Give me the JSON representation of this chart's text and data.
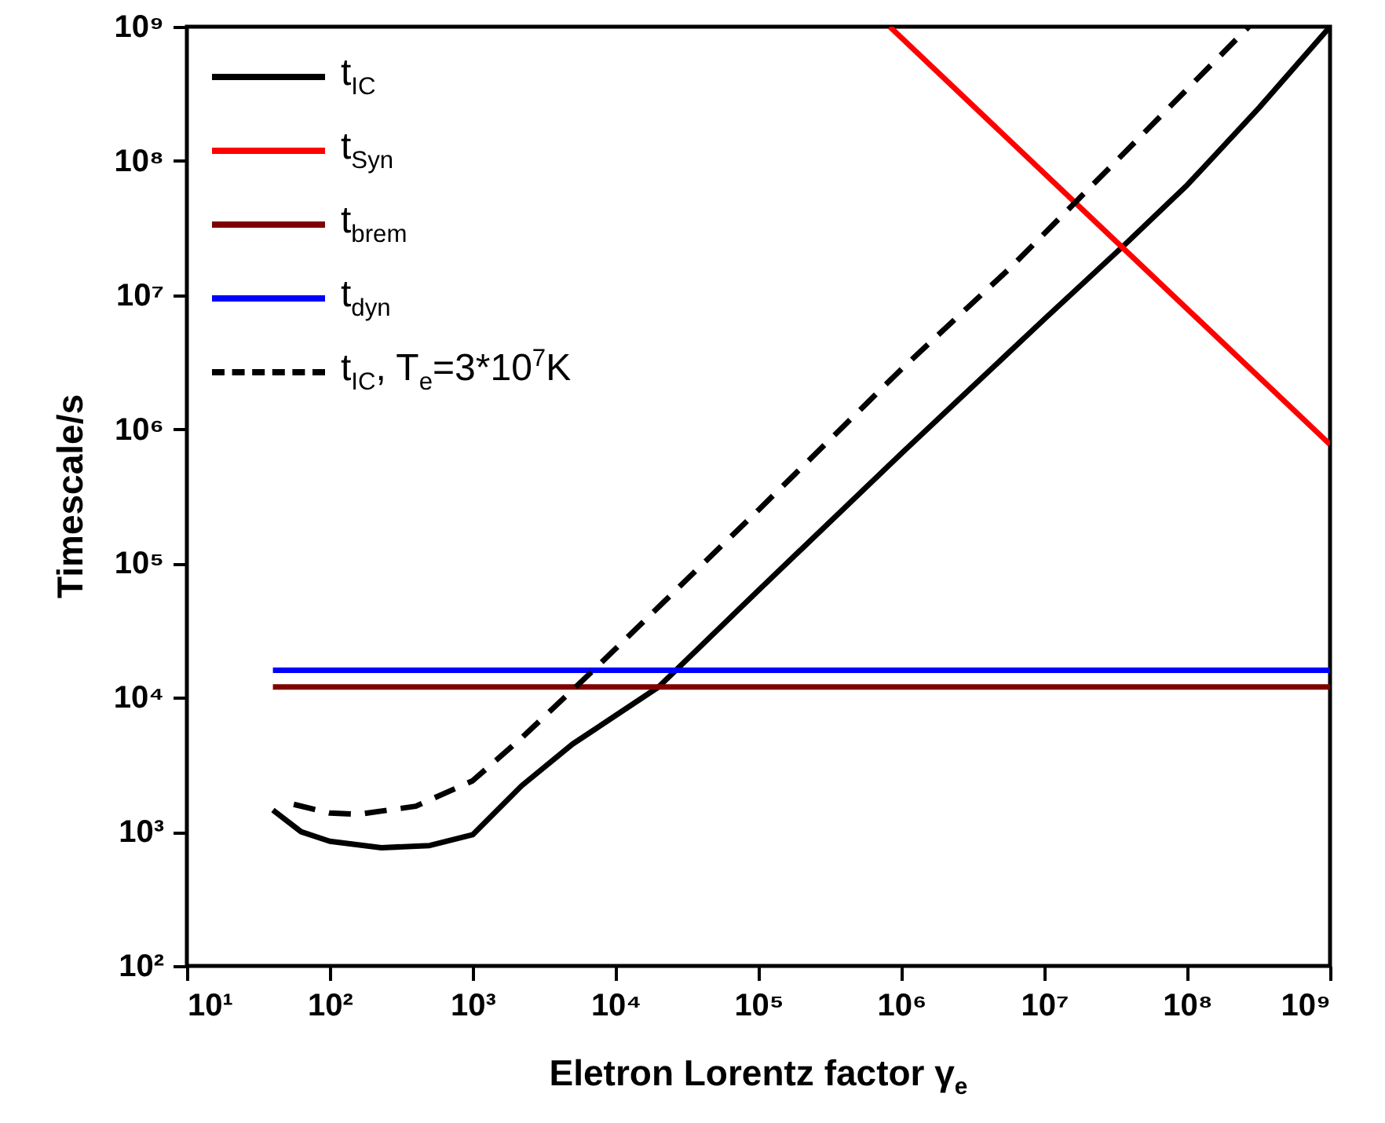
{
  "chart_data": {
    "type": "line",
    "xlabel": "Eletron Lorentz factor γ$_{e}$",
    "ylabel": "Timescale/s",
    "log": "xy",
    "xlim": [
      10,
      1000000000
    ],
    "ylim": [
      100,
      1000000000
    ],
    "xticks": [
      {
        "value": 10,
        "label": "10¹"
      },
      {
        "value": 100,
        "label": "10²"
      },
      {
        "value": 1000,
        "label": "10³"
      },
      {
        "value": 10000,
        "label": "10⁴"
      },
      {
        "value": 100000,
        "label": "10⁵"
      },
      {
        "value": 1000000,
        "label": "10⁶"
      },
      {
        "value": 10000000,
        "label": "10⁷"
      },
      {
        "value": 100000000,
        "label": "10⁸"
      },
      {
        "value": 1000000000,
        "label": "10⁹"
      }
    ],
    "yticks": [
      {
        "value": 100,
        "label": "10²"
      },
      {
        "value": 1000,
        "label": "10³"
      },
      {
        "value": 10000,
        "label": "10⁴"
      },
      {
        "value": 100000,
        "label": "10⁵"
      },
      {
        "value": 1000000,
        "label": "10⁶"
      },
      {
        "value": 10000000,
        "label": "10⁷"
      },
      {
        "value": 100000000,
        "label": "10⁸"
      },
      {
        "value": 1000000000,
        "label": "10⁹"
      }
    ],
    "legend": "top left",
    "marker": "none",
    "series": [
      {
        "name": "t$_{IC}$",
        "color": "#000000",
        "line_style": "solid",
        "x": [
          40,
          63,
          100,
          230,
          500,
          1000,
          2200,
          5000,
          20000,
          100000,
          1000000,
          10000000,
          37000000,
          100000000,
          320000000,
          1000000000
        ],
        "values": [
          1450,
          1000,
          850,
          760,
          790,
          950,
          2200,
          4500,
          12000,
          63000,
          660000,
          6600000,
          24000000,
          66000000,
          250000000,
          1000000000
        ]
      },
      {
        "name": "t$_{Syn}$",
        "color": "#ff0000",
        "line_style": "solid",
        "x": [
          830000,
          1000000000
        ],
        "values": [
          1000000000,
          770000
        ]
      },
      {
        "name": "t$_{brem}$",
        "color": "#800000",
        "line_style": "solid",
        "x": [
          40,
          1000000000
        ],
        "values": [
          12000,
          12000
        ]
      },
      {
        "name": "t$_{dyn}$",
        "color": "#0000ff",
        "line_style": "solid",
        "x": [
          40,
          1000000000
        ],
        "values": [
          16000,
          16000
        ]
      },
      {
        "name": "t$_{IC}$, T$_{e}$=3*10$^{7}$K",
        "color": "#000000",
        "line_style": "dashed",
        "x": [
          56,
          100,
          160,
          400,
          1000,
          2200,
          7000,
          100000,
          1000000,
          5800000,
          32000000,
          270000000
        ],
        "values": [
          1600,
          1380,
          1350,
          1550,
          2400,
          5000,
          16000,
          250000,
          2800000,
          16000000,
          100000000,
          1000000000
        ]
      }
    ]
  }
}
